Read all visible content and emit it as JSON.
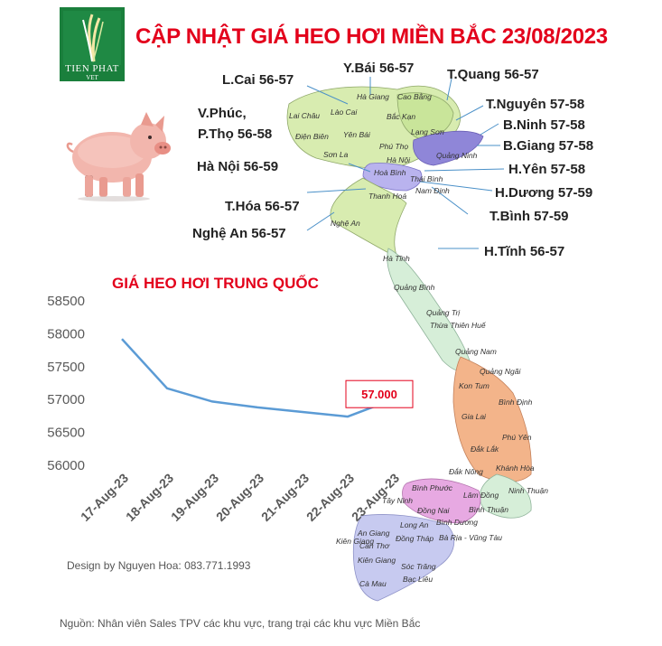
{
  "title": "CẬP NHẬT GIÁ HEO HƠI MIỀN BẮC 23/08/2023",
  "logo": {
    "name": "TIEN PHAT",
    "sub": "VET"
  },
  "prices": [
    {
      "id": "lcai",
      "text": "L.Cai 56-57"
    },
    {
      "id": "ybai",
      "text": "Y.Bái 56-57"
    },
    {
      "id": "tquang",
      "text": "T.Quang 56-57"
    },
    {
      "id": "tnguyen",
      "text": "T.Nguyên 57-58"
    },
    {
      "id": "bninh",
      "text": "B.Ninh 57-58"
    },
    {
      "id": "bgiang",
      "text": "B.Giang 57-58"
    },
    {
      "id": "vphuc1",
      "text": "V.Phúc,"
    },
    {
      "id": "vphuc2",
      "text": "P.Thọ 56-58"
    },
    {
      "id": "hanoi",
      "text": "Hà Nội 56-59"
    },
    {
      "id": "hyen",
      "text": "H.Yên 57-58"
    },
    {
      "id": "hduong",
      "text": "H.Dương 57-59"
    },
    {
      "id": "thoa",
      "text": "T.Hóa 56-57"
    },
    {
      "id": "tbinh",
      "text": "T.Bình 57-59"
    },
    {
      "id": "nghean",
      "text": "Nghệ An 56-57"
    },
    {
      "id": "htinh",
      "text": "H.Tĩnh 56-57"
    }
  ],
  "map_labels": [
    "Hà Giang",
    "Cao Bằng",
    "Lai Châu",
    "Lào Cai",
    "Bắc Kạn",
    "Điện Biên",
    "Yên Bái",
    "Lạng Sơn",
    "Sơn La",
    "Phú Thọ",
    "Quảng Ninh",
    "Hà Nội",
    "Hoà Bình",
    "Thái Bình",
    "Nam Định",
    "Thanh Hoá",
    "Nghệ An",
    "Hà Tĩnh",
    "Quảng Bình",
    "Quảng Trị",
    "Thừa Thiên Huế",
    "Quảng Nam",
    "Quảng Ngãi",
    "Kon Tum",
    "Bình Định",
    "Gia Lai",
    "Phú Yên",
    "Đắk Lắk",
    "Khánh Hòa",
    "Đắk Nông",
    "Ninh Thuận",
    "Lâm Đồng",
    "Bình Phước",
    "Tây Ninh",
    "Bình Thuận",
    "Đồng Nai",
    "Bình Dương",
    "Long An",
    "An Giang",
    "Kiên Giang",
    "Đồng Tháp",
    "Bà Rịa - Vũng Tàu",
    "Cần Thơ",
    "Kiên Giang",
    "Sóc Trăng",
    "Bạc Liêu",
    "Cà Mau"
  ],
  "chart_data": {
    "type": "line",
    "title": "GIÁ HEO HƠI TRUNG QUỐC",
    "categories": [
      "17-Aug-23",
      "18-Aug-23",
      "19-Aug-23",
      "20-Aug-23",
      "21-Aug-23",
      "22-Aug-23",
      "23-Aug-23"
    ],
    "values": [
      57920,
      57170,
      56970,
      56880,
      56810,
      56740,
      57000
    ],
    "ylim": [
      56000,
      58500
    ],
    "yticks": [
      56000,
      56500,
      57000,
      57500,
      58000,
      58500
    ],
    "ytick_labels": [
      "56000",
      "56500",
      "57000",
      "57500",
      "58000",
      "58500"
    ],
    "data_label": "57.000",
    "line_color": "#5b9bd5",
    "grid": false,
    "legend": "none"
  },
  "design": "Design by Nguyen Hoa: 083.771.1993",
  "source": "Nguồn: Nhân viên Sales TPV các khu vực, trang trại các khu vực Miền Bắc"
}
